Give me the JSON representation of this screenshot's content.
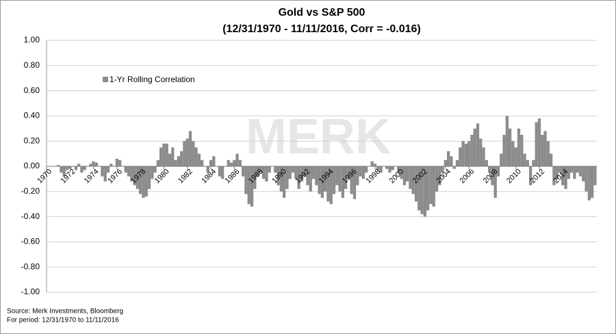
{
  "chart_data": {
    "type": "bar",
    "title": "Gold vs S&P 500",
    "subtitle": "(12/31/1970 - 11/11/2016, Corr = -0.016)",
    "watermark": "MERK",
    "source": "Source: Merk Investments, Bloomberg",
    "period": "For period: 12/31/1970 to 11/11/2016",
    "grid": true,
    "legend": "upper left",
    "xlim": [
      1970,
      2016.9
    ],
    "xticks": [
      1970,
      1972,
      1974,
      1976,
      1978,
      1980,
      1982,
      1984,
      1986,
      1988,
      1990,
      1992,
      1994,
      1996,
      1998,
      2000,
      2002,
      2004,
      2006,
      2008,
      2010,
      2012,
      2014
    ],
    "ylim": [
      -1,
      1
    ],
    "yticks": [
      {
        "value": -1,
        "label": "-1.00"
      },
      {
        "value": -0.8,
        "label": "-0.80"
      },
      {
        "value": -0.6,
        "label": "-0.60"
      },
      {
        "value": -0.4,
        "label": "-0.40"
      },
      {
        "value": -0.2,
        "label": "-0.20"
      },
      {
        "value": 0,
        "label": "0.00"
      },
      {
        "value": 0.2,
        "label": "0.20"
      },
      {
        "value": 0.4,
        "label": "0.40"
      },
      {
        "value": 0.6,
        "label": "0.60"
      },
      {
        "value": 0.8,
        "label": "0.80"
      },
      {
        "value": 1,
        "label": "1.00"
      }
    ],
    "x": [
      1971,
      1971.25,
      1971.5,
      1971.75,
      1972,
      1972.25,
      1972.5,
      1972.75,
      1973,
      1973.25,
      1973.5,
      1973.75,
      1974,
      1974.25,
      1974.5,
      1974.75,
      1975,
      1975.25,
      1975.5,
      1975.75,
      1976,
      1976.25,
      1976.5,
      1976.75,
      1977,
      1977.25,
      1977.5,
      1977.75,
      1978,
      1978.25,
      1978.5,
      1978.75,
      1979,
      1979.25,
      1979.5,
      1979.75,
      1980,
      1980.25,
      1980.5,
      1980.75,
      1981,
      1981.25,
      1981.5,
      1981.75,
      1982,
      1982.25,
      1982.5,
      1982.75,
      1983,
      1983.25,
      1983.5,
      1983.75,
      1984,
      1984.25,
      1984.5,
      1984.75,
      1985,
      1985.25,
      1985.5,
      1985.75,
      1986,
      1986.25,
      1986.5,
      1986.75,
      1987,
      1987.25,
      1987.5,
      1987.75,
      1988,
      1988.25,
      1988.5,
      1988.75,
      1989,
      1989.25,
      1989.5,
      1989.75,
      1990,
      1990.25,
      1990.5,
      1990.75,
      1991,
      1991.25,
      1991.5,
      1991.75,
      1992,
      1992.25,
      1992.5,
      1992.75,
      1993,
      1993.25,
      1993.5,
      1993.75,
      1994,
      1994.25,
      1994.5,
      1994.75,
      1995,
      1995.25,
      1995.5,
      1995.75,
      1996,
      1996.25,
      1996.5,
      1996.75,
      1997,
      1997.25,
      1997.5,
      1997.75,
      1998,
      1998.25,
      1998.5,
      1998.75,
      1999,
      1999.25,
      1999.5,
      1999.75,
      2000,
      2000.25,
      2000.5,
      2000.75,
      2001,
      2001.25,
      2001.5,
      2001.75,
      2002,
      2002.25,
      2002.5,
      2002.75,
      2003,
      2003.25,
      2003.5,
      2003.75,
      2004,
      2004.25,
      2004.5,
      2004.75,
      2005,
      2005.25,
      2005.5,
      2005.75,
      2006,
      2006.25,
      2006.5,
      2006.75,
      2007,
      2007.25,
      2007.5,
      2007.75,
      2008,
      2008.25,
      2008.5,
      2008.75,
      2009,
      2009.25,
      2009.5,
      2009.75,
      2010,
      2010.25,
      2010.5,
      2010.75,
      2011,
      2011.25,
      2011.5,
      2011.75,
      2012,
      2012.25,
      2012.5,
      2012.75,
      2013,
      2013.25,
      2013.5,
      2013.75,
      2014,
      2014.25,
      2014.5,
      2014.75,
      2015,
      2015.25,
      2015.5,
      2015.75,
      2016,
      2016.25,
      2016.5,
      2016.75
    ],
    "series": [
      {
        "name": "1-Yr Rolling Correlation",
        "color": "#8c8c8c",
        "values": [
          0.01,
          -0.05,
          -0.08,
          -0.03,
          -0.02,
          0.0,
          -0.03,
          0.02,
          -0.05,
          -0.03,
          0.0,
          0.02,
          0.04,
          0.03,
          0.0,
          -0.08,
          -0.12,
          -0.05,
          0.02,
          0.0,
          0.06,
          0.05,
          0.0,
          -0.05,
          -0.08,
          -0.12,
          -0.15,
          -0.18,
          -0.22,
          -0.25,
          -0.24,
          -0.18,
          -0.1,
          -0.05,
          0.05,
          0.15,
          0.18,
          0.18,
          0.1,
          0.15,
          0.05,
          0.08,
          0.12,
          0.2,
          0.22,
          0.28,
          0.2,
          0.15,
          0.1,
          0.05,
          0.0,
          -0.05,
          0.05,
          0.08,
          0.0,
          -0.08,
          -0.1,
          0.0,
          0.05,
          0.03,
          0.05,
          0.1,
          0.05,
          -0.08,
          -0.22,
          -0.3,
          -0.32,
          -0.18,
          -0.08,
          -0.05,
          -0.1,
          -0.12,
          -0.05,
          0.0,
          -0.05,
          -0.15,
          -0.2,
          -0.25,
          -0.18,
          -0.1,
          -0.05,
          -0.1,
          -0.18,
          -0.12,
          -0.08,
          -0.15,
          -0.2,
          -0.1,
          -0.15,
          -0.22,
          -0.25,
          -0.2,
          -0.28,
          -0.3,
          -0.22,
          -0.15,
          -0.2,
          -0.25,
          -0.18,
          -0.1,
          -0.22,
          -0.26,
          -0.15,
          -0.08,
          -0.1,
          -0.05,
          0.0,
          0.04,
          0.02,
          -0.03,
          -0.05,
          0.0,
          -0.02,
          -0.05,
          -0.03,
          0.0,
          -0.05,
          -0.1,
          -0.15,
          -0.12,
          -0.18,
          -0.22,
          -0.28,
          -0.35,
          -0.38,
          -0.4,
          -0.35,
          -0.3,
          -0.32,
          -0.2,
          -0.15,
          -0.05,
          0.05,
          0.12,
          0.08,
          -0.02,
          0.05,
          0.15,
          0.2,
          0.18,
          0.2,
          0.25,
          0.3,
          0.34,
          0.22,
          0.15,
          0.05,
          -0.05,
          -0.15,
          -0.25,
          -0.08,
          0.1,
          0.25,
          0.4,
          0.3,
          0.2,
          0.15,
          0.3,
          0.25,
          0.1,
          0.05,
          -0.15,
          0.05,
          0.35,
          0.38,
          0.25,
          0.28,
          0.2,
          0.1,
          -0.15,
          -0.1,
          -0.05,
          -0.15,
          -0.18,
          -0.1,
          -0.05,
          -0.1,
          -0.05,
          -0.08,
          -0.12,
          -0.2,
          -0.27,
          -0.25,
          -0.15
        ]
      }
    ]
  }
}
